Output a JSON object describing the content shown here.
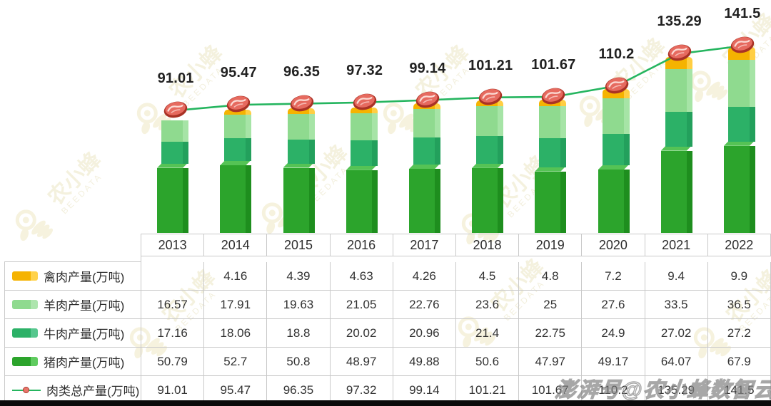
{
  "chart_data": {
    "type": "bar",
    "subtype": "stacked-3d-bars-with-total-line",
    "title": "",
    "categories": [
      "2013",
      "2014",
      "2015",
      "2016",
      "2017",
      "2018",
      "2019",
      "2020",
      "2021",
      "2022"
    ],
    "series": [
      {
        "key": "poultry",
        "name": "禽肉产量(万吨)",
        "values": [
          null,
          4.16,
          4.39,
          4.63,
          4.26,
          4.5,
          4.8,
          7.2,
          9.4,
          9.9
        ]
      },
      {
        "key": "mutton",
        "name": "羊肉产量(万吨)",
        "values": [
          16.57,
          17.91,
          19.63,
          21.05,
          22.76,
          23.6,
          25,
          27.6,
          33.5,
          36.5
        ]
      },
      {
        "key": "beef",
        "name": "牛肉产量(万吨)",
        "values": [
          17.16,
          18.06,
          18.8,
          20.02,
          20.96,
          21.4,
          22.75,
          24.9,
          27.02,
          27.2
        ]
      },
      {
        "key": "pork",
        "name": "猪肉产量(万吨)",
        "values": [
          50.79,
          52.7,
          50.8,
          48.97,
          49.88,
          50.6,
          47.97,
          49.17,
          64.07,
          67.9
        ]
      }
    ],
    "line_series": {
      "key": "total",
      "name": "肉类总产量(万吨)",
      "values": [
        91.01,
        95.47,
        96.35,
        97.32,
        99.14,
        101.21,
        101.67,
        110.2,
        135.29,
        141.5
      ]
    },
    "point_labels": [
      "91.01",
      "95.47",
      "96.35",
      "97.32",
      "99.14",
      "101.21",
      "101.67",
      "110.2",
      "135.29",
      "141.5"
    ],
    "xlabel": "",
    "ylabel": "",
    "ylim": [
      0,
      180
    ],
    "grid": false,
    "legend_position": "table-left-column"
  },
  "table": {
    "corner": "",
    "years": [
      "2013",
      "2014",
      "2015",
      "2016",
      "2017",
      "2018",
      "2019",
      "2020",
      "2021",
      "2022"
    ],
    "rows": [
      {
        "key": "poultry",
        "label": "禽肉产量(万吨)",
        "cells": [
          "",
          "4.16",
          "4.39",
          "4.63",
          "4.26",
          "4.5",
          "4.8",
          "7.2",
          "9.4",
          "9.9"
        ]
      },
      {
        "key": "mutton",
        "label": "羊肉产量(万吨)",
        "cells": [
          "16.57",
          "17.91",
          "19.63",
          "21.05",
          "22.76",
          "23.6",
          "25",
          "27.6",
          "33.5",
          "36.5"
        ]
      },
      {
        "key": "beef",
        "label": "牛肉产量(万吨)",
        "cells": [
          "17.16",
          "18.06",
          "18.8",
          "20.02",
          "20.96",
          "21.4",
          "22.75",
          "24.9",
          "27.02",
          "27.2"
        ]
      },
      {
        "key": "pork",
        "label": "猪肉产量(万吨)",
        "cells": [
          "50.79",
          "52.7",
          "50.8",
          "48.97",
          "49.88",
          "50.6",
          "47.97",
          "49.17",
          "64.07",
          "67.9"
        ]
      },
      {
        "key": "total",
        "label": "肉类总产量(万吨)",
        "cells": [
          "91.01",
          "95.47",
          "96.35",
          "97.32",
          "99.14",
          "101.21",
          "101.67",
          "110.2",
          "135.29",
          "141.5"
        ]
      }
    ]
  },
  "colors": {
    "poultry": {
      "front": "#F5B301",
      "side": "#FFCE43"
    },
    "mutton": {
      "front": "#8FDA8F",
      "side": "#A6E4A6"
    },
    "beef": {
      "front": "#2CB167",
      "side": "#23A05C"
    },
    "pork": {
      "front": "#2CA42C",
      "side": "#1E8E1E",
      "top": "#55C355"
    },
    "line": "#25B55F",
    "legend": {
      "poultry": [
        "#F5B301",
        "#FFD24B"
      ],
      "mutton": [
        "#8FDA8F",
        "#AEE5AE"
      ],
      "beef": [
        "#2CB167",
        "#56C78E"
      ],
      "pork": [
        "#2CA42C",
        "#5FCB5F"
      ]
    }
  },
  "watermark": {
    "brand": "农小蜂",
    "sub": "BEEDATA",
    "credit": "澎湃号@农小蜂数智云"
  }
}
